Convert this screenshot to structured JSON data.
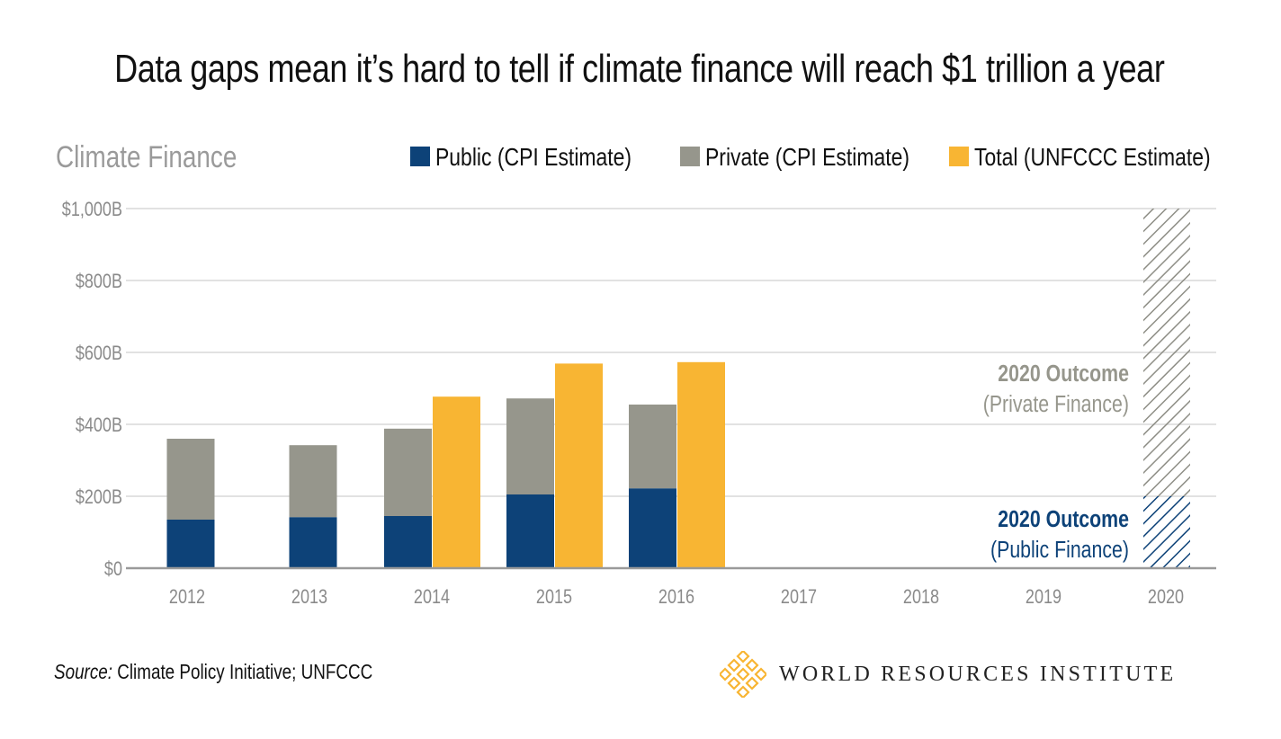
{
  "title": "Data gaps mean it’s hard to tell if climate finance will reach $1 trillion a year",
  "chart_data": {
    "type": "bar",
    "title": "Data gaps mean it’s hard to tell if climate finance will reach $1 trillion a year",
    "ylabel": "Climate Finance",
    "xlabel": "",
    "categories": [
      "2012",
      "2013",
      "2014",
      "2015",
      "2016",
      "2017",
      "2018",
      "2019",
      "2020"
    ],
    "yticks": [
      "$0",
      "$200B",
      "$400B",
      "$600B",
      "$800B",
      "$1,000B"
    ],
    "ylim": [
      0,
      1000
    ],
    "grid": true,
    "legend": "top",
    "series": [
      {
        "name": "Public (CPI Estimate)",
        "stack": "cpi",
        "color": "#0d4278",
        "values": [
          135,
          142,
          145,
          205,
          222,
          null,
          null,
          null,
          null
        ]
      },
      {
        "name": "Private (CPI Estimate)",
        "stack": "cpi",
        "color": "#96968c",
        "values": [
          225,
          200,
          243,
          267,
          233,
          null,
          null,
          null,
          null
        ]
      },
      {
        "name": "Total (UNFCCC Estimate)",
        "stack": "unfccc",
        "color": "#f8b533",
        "values": [
          null,
          null,
          477,
          569,
          573,
          null,
          null,
          null,
          null
        ]
      }
    ],
    "outcomes_2020": {
      "public": {
        "value": 200,
        "line1": "2020 Outcome",
        "line2": "(Public Finance)",
        "color": "#0d4278"
      },
      "private": {
        "value": 800,
        "line1": "2020 Outcome",
        "line2": "(Private Finance)",
        "color": "#96968c"
      }
    }
  },
  "footer": {
    "source_label": "Source:",
    "source_text": " Climate Policy Initiative; UNFCCC",
    "logo_text": "WORLD RESOURCES INSTITUTE",
    "logo_color": "#f8b533"
  }
}
